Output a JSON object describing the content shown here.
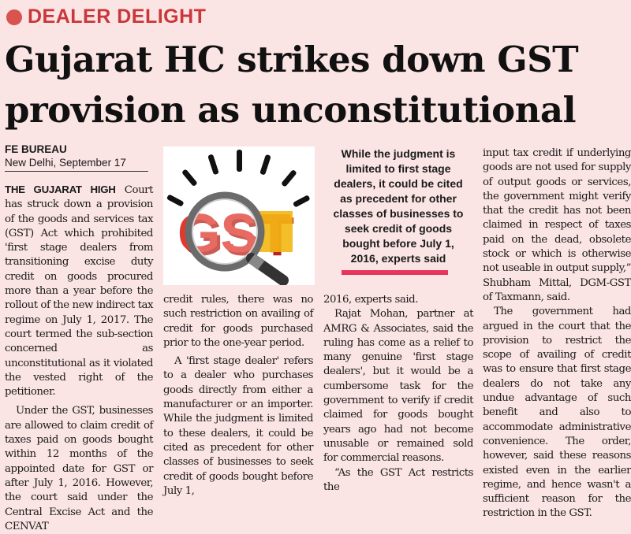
{
  "kicker": "DEALER DELIGHT",
  "headline": "Gujarat HC strikes down GST provision as unconstitutional",
  "byline": {
    "bureau": "FE BUREAU",
    "dateline": "New Delhi, September 17"
  },
  "image": {
    "alt": "GST letters under a magnifying glass",
    "logo_text": "GST",
    "colors": {
      "red": "#e03a2f",
      "yellow": "#f2b713",
      "rays": "#111111"
    }
  },
  "pull_quote": "While the judgment is limited to first stage dealers, it could be cited as precedent for other classes of businesses to seek credit of goods bought before July 1, 2016, experts said",
  "accent_color": "#e8335a",
  "article": {
    "col1": {
      "lead": "THE GUJARAT HIGH",
      "p1": " Court has struck down a provision of the goods and services tax (GST) Act which prohibited 'first stage dealers from transitioning excise duty credit on goods procured more than a year before the rollout of the new indirect tax regime on July 1, 2017. The court termed the sub-section concerned as unconstitutional as it violated the vested right of the petitioner.",
      "p2": "Under the GST, businesses are allowed to claim credit of taxes paid on goods bought within 12 months of the appointed date for GST or after July 1, 2016. However, the court said under the Central Excise Act and the CENVAT"
    },
    "col2": {
      "p1": "credit rules, there was no such restriction on availing of credit for goods purchased prior to the one-year period.",
      "p2": "A 'first stage dealer' refers to a dealer who purchases goods directly from either a manufacturer or an importer. While the judgment is limited to these dealers, it could be cited as precedent for other classes of businesses to seek credit of goods bought before July 1,"
    },
    "col3": {
      "p1": "2016, experts said.",
      "p2": "Rajat Mohan, partner at AMRG & Associates, said the ruling has come as a relief to many genuine 'first stage dealers', but it would be a cumbersome task for the government to verify if credit claimed for goods bought years ago had not become unusable or remained sold for commercial reasons.",
      "p3": "“As the GST Act restricts the"
    },
    "col4": {
      "p1": "input tax credit if underlying goods are not used for supply of output goods or services, the government might verify that the credit has not been claimed in respect of taxes paid on the dead, obsolete stock or which is otherwise not useable in output supply,” Shubham Mittal, DGM-GST of Taxmann, said.",
      "p2": "The government had argued in the court that the provision to restrict the scope of availing of credit was to ensure that first stage dealers do not take any undue advantage of such benefit and also to accommodate administrative convenience. The order, however, said these reasons existed even in the earlier regime, and hence wasn't a sufficient reason for the restriction in the GST."
    }
  }
}
